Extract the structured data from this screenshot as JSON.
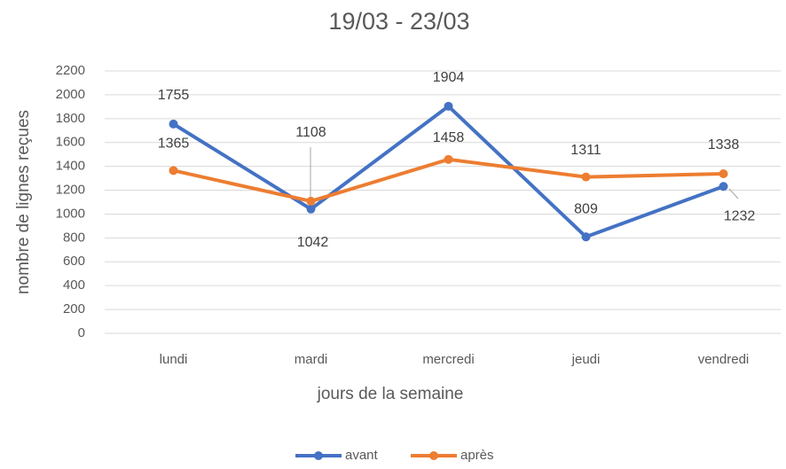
{
  "chart_data": {
    "type": "line",
    "title": "19/03 - 23/03",
    "xlabel": "jours de la semaine",
    "ylabel": "nombre de lignes reçues",
    "categories": [
      "lundi",
      "mardi",
      "mercredi",
      "jeudi",
      "vendredi"
    ],
    "series": [
      {
        "name": "avant",
        "color": "#4472c4",
        "values": [
          1755,
          1042,
          1904,
          809,
          1232
        ]
      },
      {
        "name": "après",
        "color": "#ed7d31",
        "values": [
          1365,
          1108,
          1458,
          1311,
          1338
        ]
      }
    ],
    "ylim": [
      0,
      2200
    ],
    "yticks": [
      0,
      200,
      400,
      600,
      800,
      1000,
      1200,
      1400,
      1600,
      1800,
      2000,
      2200
    ],
    "grid": true,
    "legend": "bottom"
  }
}
